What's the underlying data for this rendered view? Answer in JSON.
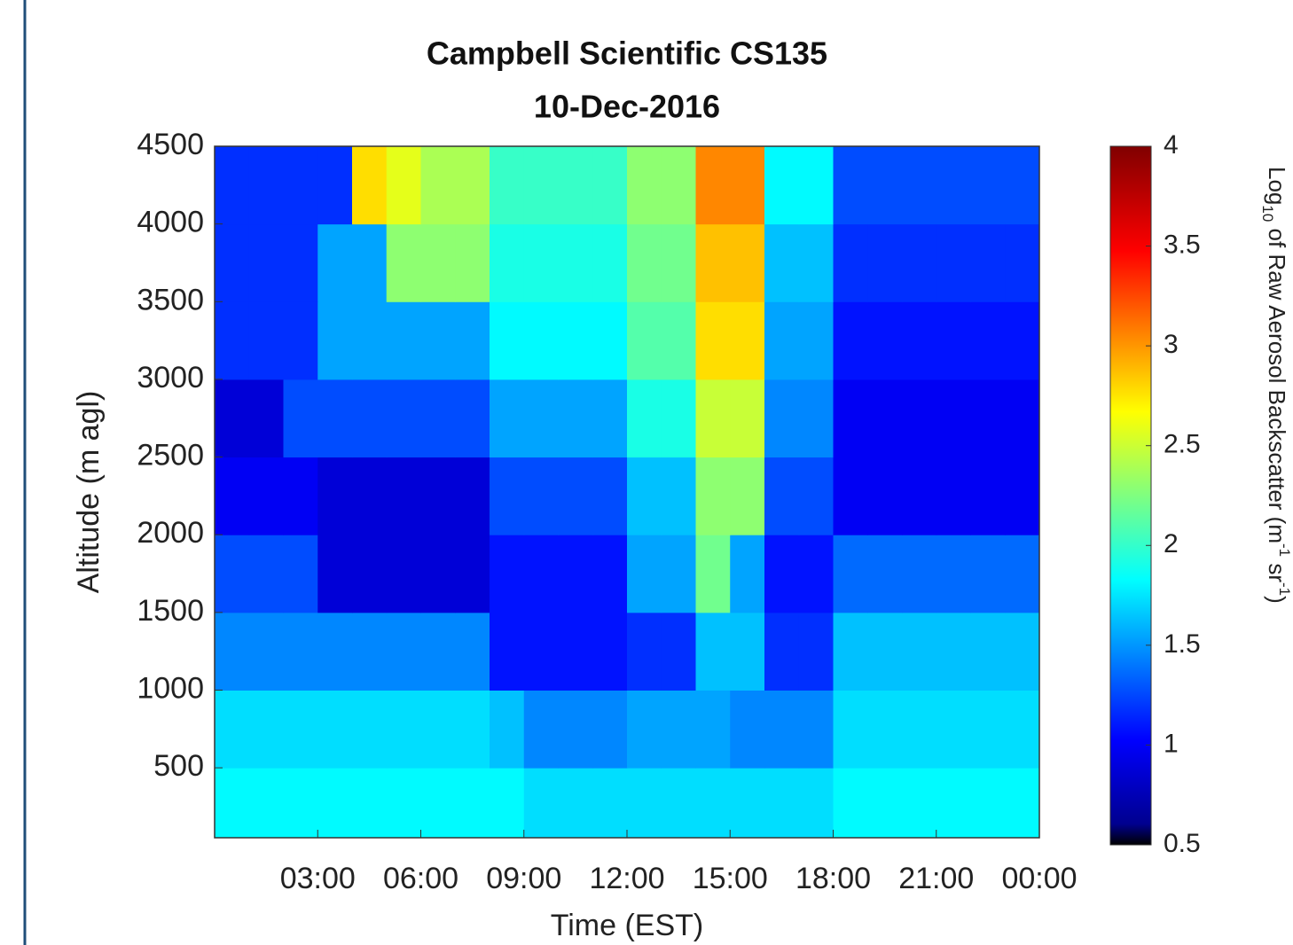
{
  "chart_data": {
    "type": "heatmap",
    "title": [
      "Campbell Scientific CS135",
      "10-Dec-2016"
    ],
    "xlabel": "Time (EST)",
    "ylabel": "Altitude (m agl)",
    "xlim": [
      0,
      24
    ],
    "ylim": [
      50,
      4500
    ],
    "xticks": [
      {
        "value": 3,
        "label": "03:00"
      },
      {
        "value": 6,
        "label": "06:00"
      },
      {
        "value": 9,
        "label": "09:00"
      },
      {
        "value": 12,
        "label": "12:00"
      },
      {
        "value": 15,
        "label": "15:00"
      },
      {
        "value": 18,
        "label": "18:00"
      },
      {
        "value": 21,
        "label": "21:00"
      },
      {
        "value": 24,
        "label": "00:00"
      }
    ],
    "yticks": [
      500,
      1000,
      1500,
      2000,
      2500,
      3000,
      3500,
      4000,
      4500
    ],
    "xbins": [
      0,
      1,
      2,
      3,
      4,
      5,
      6,
      7,
      8,
      9,
      10,
      11,
      12,
      13,
      14,
      15,
      16,
      17,
      18,
      19,
      20,
      21,
      22,
      23,
      24
    ],
    "ybins": [
      50,
      500,
      1000,
      1500,
      2000,
      2500,
      3000,
      3500,
      4000,
      4500
    ],
    "z": [
      [
        1.8,
        1.8,
        1.8,
        1.8,
        1.8,
        1.8,
        1.8,
        1.8,
        1.8,
        1.7,
        1.7,
        1.7,
        1.7,
        1.7,
        1.7,
        1.7,
        1.7,
        1.7,
        1.8,
        1.8,
        1.8,
        1.8,
        1.8,
        1.8
      ],
      [
        1.7,
        1.7,
        1.7,
        1.7,
        1.7,
        1.7,
        1.7,
        1.7,
        1.6,
        1.4,
        1.4,
        1.4,
        1.5,
        1.5,
        1.5,
        1.4,
        1.4,
        1.4,
        1.7,
        1.7,
        1.7,
        1.7,
        1.7,
        1.7
      ],
      [
        1.4,
        1.4,
        1.4,
        1.4,
        1.4,
        1.4,
        1.4,
        1.4,
        1.0,
        1.0,
        1.0,
        1.0,
        1.1,
        1.1,
        1.6,
        1.6,
        1.1,
        1.1,
        1.6,
        1.6,
        1.6,
        1.6,
        1.6,
        1.6
      ],
      [
        1.2,
        1.2,
        1.2,
        0.8,
        0.8,
        0.8,
        0.8,
        0.8,
        1.0,
        1.0,
        1.0,
        1.0,
        1.5,
        1.5,
        2.2,
        1.5,
        1.0,
        1.0,
        1.3,
        1.3,
        1.3,
        1.3,
        1.3,
        1.3
      ],
      [
        0.9,
        0.9,
        0.9,
        0.8,
        0.8,
        0.8,
        0.8,
        0.8,
        1.2,
        1.2,
        1.2,
        1.2,
        1.6,
        1.6,
        2.3,
        2.3,
        1.2,
        1.2,
        0.9,
        0.9,
        0.9,
        0.9,
        0.9,
        0.9
      ],
      [
        0.8,
        0.8,
        1.2,
        1.2,
        1.2,
        1.2,
        1.2,
        1.2,
        1.5,
        1.5,
        1.5,
        1.5,
        1.9,
        1.9,
        2.5,
        2.5,
        1.4,
        1.4,
        0.9,
        0.9,
        0.9,
        0.9,
        0.9,
        0.9
      ],
      [
        1.1,
        1.1,
        1.1,
        1.5,
        1.5,
        1.5,
        1.5,
        1.5,
        1.8,
        1.8,
        1.8,
        1.8,
        2.1,
        2.1,
        2.8,
        2.8,
        1.5,
        1.5,
        1.0,
        1.0,
        1.0,
        1.0,
        1.0,
        1.0
      ],
      [
        1.1,
        1.1,
        1.1,
        1.5,
        1.5,
        2.3,
        2.3,
        2.3,
        1.9,
        1.9,
        1.9,
        1.9,
        2.2,
        2.2,
        2.9,
        2.9,
        1.6,
        1.6,
        1.1,
        1.1,
        1.1,
        1.1,
        1.1,
        1.1
      ],
      [
        1.1,
        1.1,
        1.1,
        1.1,
        2.8,
        2.6,
        2.4,
        2.4,
        2.0,
        2.0,
        2.0,
        2.0,
        2.3,
        2.3,
        3.1,
        3.1,
        1.8,
        1.8,
        1.2,
        1.2,
        1.2,
        1.2,
        1.2,
        1.2
      ]
    ],
    "colormap": "jet",
    "colorbar": {
      "lim": [
        0.5,
        4
      ],
      "ticks": [
        0.5,
        1,
        1.5,
        2,
        2.5,
        3,
        3.5,
        4
      ],
      "label": [
        "Log",
        "10",
        " of Raw Aerosol Backscatter (m",
        "-1",
        " sr",
        "-1",
        ")"
      ]
    }
  }
}
